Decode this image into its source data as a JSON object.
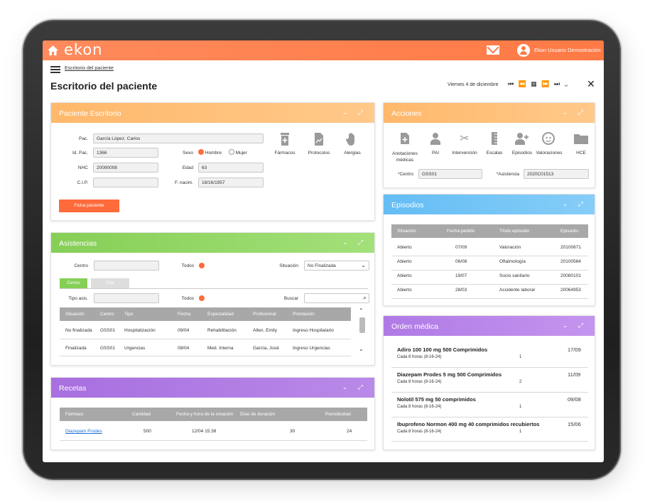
{
  "topbar": {
    "logo": "ekon",
    "user": "Ekon Usuario Demostración",
    "accent": "#ff7a45"
  },
  "breadcrumb": "Escritorio del paciente",
  "title": "Escritorio del paciente",
  "date": "Viernes 4 de diciembre",
  "nav": "⏮ ⏪ ▦ ⏩ ⏭ ⌄",
  "close": "✕",
  "paciente": {
    "title": "Paciente Escritorio",
    "color": "#ffb86b",
    "pac_label": "Pac.",
    "pac": "García López, Carlos",
    "id_label": "Id. Pac.",
    "id": "1366",
    "nhc_label": "NHC",
    "nhc": "20090008",
    "cip_label": "C.I.P.",
    "cip": "",
    "sexo_label": "Sexo",
    "hombre": "Hombre",
    "mujer": "Mujer",
    "edad_label": "Edad",
    "edad": "63",
    "fnac_label": "F. nacim.",
    "fnac": "18/16/1957",
    "farmacos": "Fármacos",
    "protocolos": "Protocolos",
    "alergias": "Alergias",
    "ficha": "Ficha paciente"
  },
  "asistencias": {
    "title": "Asistencias",
    "color": "#8cd35c",
    "centro_label": "Centro",
    "todos": "Todos",
    "situacion_label": "Situación",
    "situacion": "No Finalizada",
    "tab_censo": "Censo",
    "tab_cita": "Cita",
    "tipo_label": "Tipo asis.",
    "buscar": "Buscar",
    "headers": [
      "Situación",
      "Centro",
      "Tipo",
      "Fecha",
      "Especialidad",
      "Profesional",
      "Prestación"
    ],
    "rows": [
      [
        "No finalizada",
        "GSS01",
        "Hospitalización",
        "09/04",
        "Rehabilitación",
        "Allen, Emily",
        "Ingreso Hospitalario"
      ],
      [
        "Finalizada",
        "GSS01",
        "Urgencias",
        "08/04",
        "Med. Interna",
        "García, José",
        "Ingreso Urgencias"
      ]
    ]
  },
  "recetas": {
    "title": "Recetas",
    "color": "#a86fe0",
    "headers": [
      "Fármaco",
      "Cantidad",
      "Fecha y hora de la creación",
      "Días de duración",
      "Periodicidad"
    ],
    "row": {
      "farmaco": "Diazepam Prodes",
      "cantidad": "500",
      "fecha": "12/04 15:38",
      "dias": "30",
      "periodicidad": "24"
    }
  },
  "acciones": {
    "title": "Acciones",
    "color": "#ffb86b",
    "items": [
      "Anotaciones médicas",
      "PAI",
      "Intervención",
      "Escalas",
      "Episodios",
      "Valoraciones",
      "HCE"
    ],
    "centro_label": "*Centro",
    "centro": "GSS01",
    "asistencia_label": "*Asistencia",
    "asistencia": "2020C01513"
  },
  "episodios": {
    "title": "Episodios",
    "color": "#6cc1f5",
    "headers": [
      "Situación",
      "Fecha pedido",
      "Título episodio",
      "Episodio"
    ],
    "rows": [
      [
        "Abierto",
        "07/09",
        "Valoración",
        "20100671"
      ],
      [
        "Abierto",
        "06/08",
        "Oftalmología",
        "20100564"
      ],
      [
        "Abierto",
        "19/07",
        "Socio sanitario",
        "20080101"
      ],
      [
        "Abierto",
        "28/03",
        "Accidente laboral",
        "20064953"
      ]
    ]
  },
  "orden": {
    "title": "Orden médica",
    "color": "#b57ee8",
    "items": [
      {
        "name": "Adiro 100 100 mg 500 Comprimidos",
        "dose": "Cada 8 horas (8-16-24)",
        "qty": "1",
        "date": "17/09"
      },
      {
        "name": "Diazepam Prodes 5 mg 500 Comprimidos",
        "dose": "Cada 8 horas (8-16-24)",
        "qty": "2",
        "date": "11/09"
      },
      {
        "name": "Nolotil 575 mg 50 comprimidos",
        "dose": "Cada 8 horas (8-16-24)",
        "qty": "1",
        "date": "09/08"
      },
      {
        "name": "Ibuprofeno Normon 400 mg 40 comprimidos recubiertos",
        "dose": "Cada 8 horas (8-16-24)",
        "qty": "1",
        "date": "15/06"
      }
    ]
  }
}
